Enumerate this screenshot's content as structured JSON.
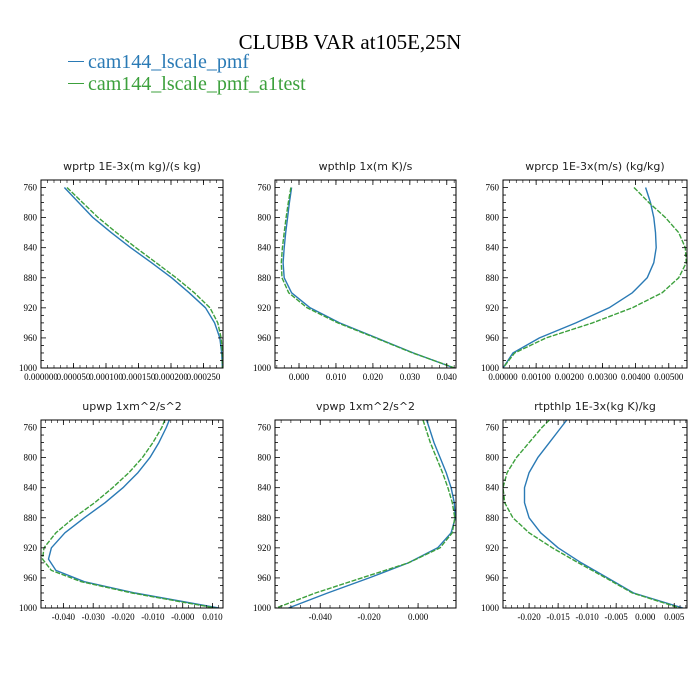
{
  "title": "CLUBB VAR at105E,25N",
  "legend": [
    {
      "label": "cam144_lscale_pmf",
      "color": "#2a7ab5"
    },
    {
      "label": "cam144_lscale_pmf_a1test",
      "color": "#3ca03c"
    }
  ],
  "chart_data": [
    {
      "type": "line",
      "title": "wprtp  1E-3x(m kg)/(s kg)",
      "xlim": [
        0.0,
        0.00028
      ],
      "ylim": [
        1000,
        750
      ],
      "x_ticks": [
        0.0,
        5e-05,
        0.0001,
        0.00015,
        0.0002,
        0.00025
      ],
      "x_tick_labels": [
        "0.000000",
        "0.000050",
        "0.000100",
        "0.000150",
        "0.000200",
        "0.000250"
      ],
      "y_ticks": [
        760,
        800,
        840,
        880,
        920,
        960,
        1000
      ],
      "series": [
        {
          "name": "cam144_lscale_pmf",
          "color": "#2a7ab5",
          "y": [
            760,
            780,
            800,
            820,
            840,
            860,
            880,
            900,
            920,
            940,
            960,
            980,
            1000
          ],
          "x": [
            3.6e-05,
            5.8e-05,
            8e-05,
            0.000108,
            0.000138,
            0.00017,
            0.000201,
            0.000228,
            0.000253,
            0.000267,
            0.000275,
            0.000278,
            0.000279
          ]
        },
        {
          "name": "cam144_lscale_pmf_a1test",
          "color": "#3ca03c",
          "dashed": true,
          "y": [
            760,
            780,
            800,
            820,
            840,
            860,
            880,
            900,
            920,
            940,
            960,
            980,
            1000
          ],
          "x": [
            4e-05,
            6.4e-05,
            8.8e-05,
            0.000116,
            0.000146,
            0.000177,
            0.000208,
            0.000236,
            0.00026,
            0.000272,
            0.000277,
            0.000279,
            0.000279
          ]
        }
      ]
    },
    {
      "type": "line",
      "title": "wpthlp  1x(m K)/s",
      "xlim": [
        -0.0065,
        0.0425
      ],
      "ylim": [
        1000,
        750
      ],
      "x_ticks": [
        0.0,
        0.01,
        0.02,
        0.03,
        0.04
      ],
      "x_tick_labels": [
        "0.000",
        "0.010",
        "0.020",
        "0.030",
        "0.040"
      ],
      "y_ticks": [
        760,
        800,
        840,
        880,
        920,
        960,
        1000
      ],
      "series": [
        {
          "name": "cam144_lscale_pmf",
          "color": "#2a7ab5",
          "y": [
            760,
            780,
            800,
            820,
            840,
            860,
            880,
            900,
            920,
            940,
            960,
            980,
            1000
          ],
          "x": [
            -0.002,
            -0.0026,
            -0.0031,
            -0.0036,
            -0.004,
            -0.0043,
            -0.004,
            -0.002,
            0.003,
            0.011,
            0.021,
            0.031,
            0.042
          ]
        },
        {
          "name": "cam144_lscale_pmf_a1test",
          "color": "#3ca03c",
          "dashed": true,
          "y": [
            760,
            780,
            800,
            820,
            840,
            860,
            880,
            900,
            920,
            940,
            960,
            980,
            1000
          ],
          "x": [
            -0.0022,
            -0.0029,
            -0.0035,
            -0.004,
            -0.0045,
            -0.0048,
            -0.0046,
            -0.0028,
            0.0022,
            0.0105,
            0.0207,
            0.0308,
            0.0422
          ]
        }
      ]
    },
    {
      "type": "line",
      "title": "wprcp  1E-3x(m/s) (kg/kg)",
      "xlim": [
        0.0,
        0.00555
      ],
      "ylim": [
        1000,
        750
      ],
      "x_ticks": [
        0.0,
        0.001,
        0.002,
        0.003,
        0.004,
        0.005
      ],
      "x_tick_labels": [
        "0.00000",
        "0.00100",
        "0.00200",
        "0.00300",
        "0.00400",
        "0.00500"
      ],
      "y_ticks": [
        760,
        800,
        840,
        880,
        920,
        960,
        1000
      ],
      "series": [
        {
          "name": "cam144_lscale_pmf",
          "color": "#2a7ab5",
          "y": [
            760,
            780,
            800,
            820,
            840,
            860,
            880,
            900,
            920,
            940,
            960,
            980,
            1000
          ],
          "x": [
            0.0043,
            0.00445,
            0.00455,
            0.0046,
            0.00462,
            0.00455,
            0.00435,
            0.0039,
            0.0032,
            0.0022,
            0.0011,
            0.0003,
            0.0
          ]
        },
        {
          "name": "cam144_lscale_pmf_a1test",
          "color": "#3ca03c",
          "dashed": true,
          "y": [
            760,
            780,
            800,
            820,
            840,
            860,
            880,
            900,
            920,
            940,
            960,
            980,
            1000
          ],
          "x": [
            0.00395,
            0.0044,
            0.0049,
            0.0053,
            0.0055,
            0.00553,
            0.0053,
            0.0048,
            0.0039,
            0.0027,
            0.0013,
            0.00035,
            0.0
          ]
        }
      ]
    },
    {
      "type": "line",
      "title": "upwp  1xm^2/s^2",
      "xlim": [
        -0.0475,
        0.0135
      ],
      "ylim": [
        1000,
        750
      ],
      "x_ticks": [
        -0.04,
        -0.03,
        -0.02,
        -0.01,
        0.0,
        0.01
      ],
      "x_tick_labels": [
        "-0.040",
        "-0.030",
        "-0.020",
        "-0.010",
        "-0.000",
        "0.010"
      ],
      "y_ticks": [
        760,
        800,
        840,
        880,
        920,
        960,
        1000
      ],
      "series": [
        {
          "name": "cam144_lscale_pmf",
          "color": "#2a7ab5",
          "y": [
            750,
            760,
            780,
            800,
            820,
            840,
            860,
            880,
            900,
            920,
            935,
            950,
            965,
            980,
            1000
          ],
          "x": [
            -0.0045,
            -0.0055,
            -0.008,
            -0.011,
            -0.015,
            -0.02,
            -0.026,
            -0.033,
            -0.0395,
            -0.044,
            -0.045,
            -0.0425,
            -0.033,
            -0.016,
            0.012
          ]
        },
        {
          "name": "cam144_lscale_pmf_a1test",
          "color": "#3ca03c",
          "dashed": true,
          "y": [
            750,
            760,
            780,
            800,
            820,
            840,
            860,
            880,
            900,
            920,
            935,
            950,
            965,
            980,
            1000
          ],
          "x": [
            -0.006,
            -0.007,
            -0.01,
            -0.0135,
            -0.018,
            -0.0235,
            -0.0295,
            -0.0365,
            -0.0425,
            -0.0465,
            -0.047,
            -0.044,
            -0.034,
            -0.017,
            0.011
          ]
        }
      ]
    },
    {
      "type": "line",
      "title": "vpwp  1xm^2/s^2",
      "xlim": [
        -0.0585,
        0.0155
      ],
      "ylim": [
        1000,
        750
      ],
      "x_ticks": [
        -0.04,
        -0.02,
        0.0
      ],
      "x_tick_labels": [
        "-0.040",
        "-0.020",
        "0.000"
      ],
      "y_ticks": [
        760,
        800,
        840,
        880,
        920,
        960,
        1000
      ],
      "series": [
        {
          "name": "cam144_lscale_pmf",
          "color": "#2a7ab5",
          "y": [
            750,
            760,
            780,
            800,
            820,
            840,
            860,
            880,
            900,
            920,
            940,
            960,
            980,
            1000
          ],
          "x": [
            0.0035,
            0.0045,
            0.0065,
            0.009,
            0.0115,
            0.0135,
            0.0148,
            0.0152,
            0.0135,
            0.008,
            -0.004,
            -0.02,
            -0.037,
            -0.053
          ]
        },
        {
          "name": "cam144_lscale_pmf_a1test",
          "color": "#3ca03c",
          "dashed": true,
          "y": [
            750,
            760,
            780,
            800,
            820,
            840,
            860,
            880,
            900,
            920,
            940,
            960,
            980,
            1000
          ],
          "x": [
            0.002,
            0.003,
            0.005,
            0.0075,
            0.01,
            0.0122,
            0.014,
            0.015,
            0.014,
            0.009,
            -0.004,
            -0.023,
            -0.042,
            -0.058
          ]
        }
      ]
    },
    {
      "type": "line",
      "title": "rtpthlp  1E-3x(kg K)/kg",
      "xlim": [
        -0.0245,
        0.0072
      ],
      "ylim": [
        1000,
        750
      ],
      "x_ticks": [
        -0.02,
        -0.015,
        -0.01,
        -0.005,
        0.0,
        0.005
      ],
      "x_tick_labels": [
        "-0.020",
        "-0.015",
        "-0.010",
        "-0.005",
        "0.000",
        "0.005"
      ],
      "y_ticks": [
        760,
        800,
        840,
        880,
        920,
        960,
        1000
      ],
      "series": [
        {
          "name": "cam144_lscale_pmf",
          "color": "#2a7ab5",
          "y": [
            750,
            760,
            780,
            800,
            820,
            840,
            860,
            880,
            900,
            920,
            940,
            960,
            980,
            1000
          ],
          "x": [
            -0.0135,
            -0.0145,
            -0.0165,
            -0.0185,
            -0.02,
            -0.0208,
            -0.0208,
            -0.02,
            -0.018,
            -0.015,
            -0.011,
            -0.0065,
            -0.002,
            0.0065
          ]
        },
        {
          "name": "cam144_lscale_pmf_a1test",
          "color": "#3ca03c",
          "dashed": true,
          "y": [
            750,
            760,
            780,
            800,
            820,
            840,
            860,
            880,
            900,
            920,
            940,
            960,
            980,
            1000
          ],
          "x": [
            -0.0165,
            -0.0178,
            -0.02,
            -0.0222,
            -0.0238,
            -0.0245,
            -0.0242,
            -0.0228,
            -0.02,
            -0.016,
            -0.0115,
            -0.0068,
            -0.0022,
            0.006
          ]
        }
      ]
    }
  ]
}
